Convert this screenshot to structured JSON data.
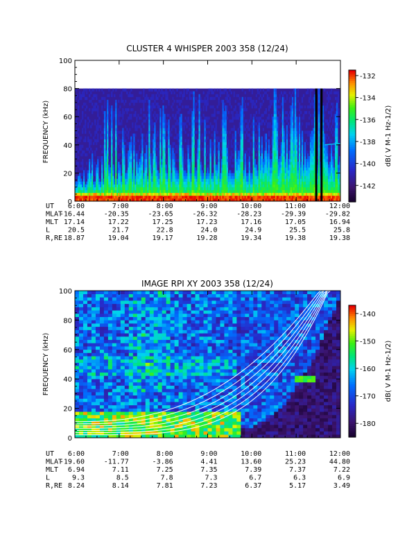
{
  "chart_data": [
    {
      "type": "heatmap",
      "title": "CLUSTER 4 WHISPER 2003 358 (12/24)",
      "ylabel": "FREQUENCY (kHz)",
      "ylim": [
        0,
        100
      ],
      "yticks": [
        "0",
        "20",
        "40",
        "60",
        "80",
        "100"
      ],
      "xlim": [
        "6:00",
        "12:00"
      ],
      "xticks": [
        "6:00",
        "7:00",
        "8:00",
        "9:00",
        "10:00",
        "11:00",
        "12:00"
      ],
      "data_upper_freq_khz": 80,
      "colorbar": {
        "label": "dB( V M⁻¹ Hz⁻¹ᐟ²)",
        "label_text": "dB( V M-1 Hz-1/2)",
        "ticks": [
          "-132",
          "-134",
          "-136",
          "-138",
          "-140",
          "-142"
        ],
        "range": [
          -143.5,
          -131.5
        ]
      },
      "ephemeris": {
        "UT": [
          "6:00",
          "7:00",
          "8:00",
          "9:00",
          "10:00",
          "11:00",
          "12:00"
        ],
        "MLAT": [
          "-16.44",
          "-20.35",
          "-23.65",
          "-26.32",
          "-28.23",
          "-29.39",
          "-29.82"
        ],
        "MLT": [
          "17.14",
          "17.22",
          "17.25",
          "17.23",
          "17.16",
          "17.05",
          "16.94"
        ],
        "L": [
          "20.5",
          "21.7",
          "22.8",
          "24.0",
          "24.9",
          "25.5",
          "25.8"
        ],
        "R,RE": [
          "18.87",
          "19.04",
          "19.17",
          "19.28",
          "19.34",
          "19.38",
          "19.38"
        ]
      }
    },
    {
      "type": "heatmap",
      "title": "IMAGE RPI XY 2003 358 (12/24)",
      "ylabel": "FREQUENCY (kHz)",
      "ylim": [
        0,
        100
      ],
      "yticks": [
        "0",
        "20",
        "40",
        "60",
        "80",
        "100"
      ],
      "xlim": [
        "6:00",
        "12:00"
      ],
      "xticks": [
        "6:00",
        "7:00",
        "8:00",
        "9:00",
        "10:00",
        "11:00",
        "12:00"
      ],
      "colorbar": {
        "label_text": "dB( V M-1 Hz-1/2)",
        "ticks": [
          "-140",
          "-150",
          "-160",
          "-170",
          "-180"
        ],
        "range": [
          -185,
          -137
        ]
      },
      "ephemeris": {
        "UT": [
          "6:00",
          "7:00",
          "8:00",
          "9:00",
          "10:00",
          "11:00",
          "12:00"
        ],
        "MLAT": [
          "-19.60",
          "-11.77",
          "-3.86",
          "4.41",
          "13.60",
          "25.23",
          "44.80"
        ],
        "MLT": [
          "6.94",
          "7.11",
          "7.25",
          "7.35",
          "7.39",
          "7.37",
          "7.22"
        ],
        "L": [
          "9.3",
          "8.5",
          "7.8",
          "7.3",
          "6.7",
          "6.3",
          "6.9"
        ],
        "R,RE": [
          "8.24",
          "8.14",
          "7.81",
          "7.23",
          "6.37",
          "5.17",
          "3.49"
        ]
      }
    }
  ]
}
